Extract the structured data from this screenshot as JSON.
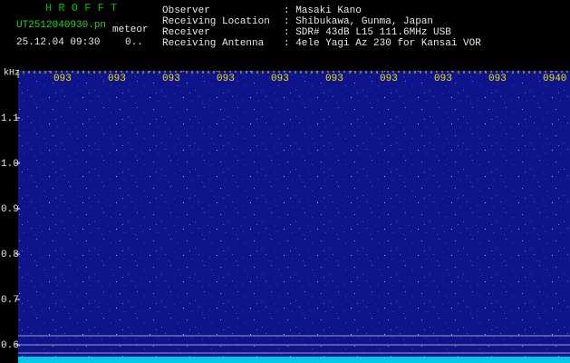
{
  "header": {
    "title": "H R O F F T",
    "filename": "UT2512040930.pn",
    "mode": "meteor",
    "datetime": "25.12.04 09:30",
    "level": "0..",
    "info": [
      {
        "label": "Observer",
        "value": ": Masaki Kano"
      },
      {
        "label": "Receiving Location",
        "value": ": Shibukawa, Gunma, Japan"
      },
      {
        "label": "Receiver",
        "value": ": SDR# 43dB L15 111.6MHz USB"
      },
      {
        "label": "Receiving Antenna",
        "value": ": 4ele Yagi Az 230 for Kansai VOR"
      }
    ]
  },
  "spectrogram": {
    "unit": "kHz",
    "time_labels": [
      "093",
      "093",
      "093",
      "093",
      "093",
      "093",
      "093",
      "093",
      "093",
      "0940"
    ],
    "freq_labels": [
      "1.1",
      "1.0",
      "0.9",
      "0.8",
      "0.7",
      "0.6"
    ]
  }
}
